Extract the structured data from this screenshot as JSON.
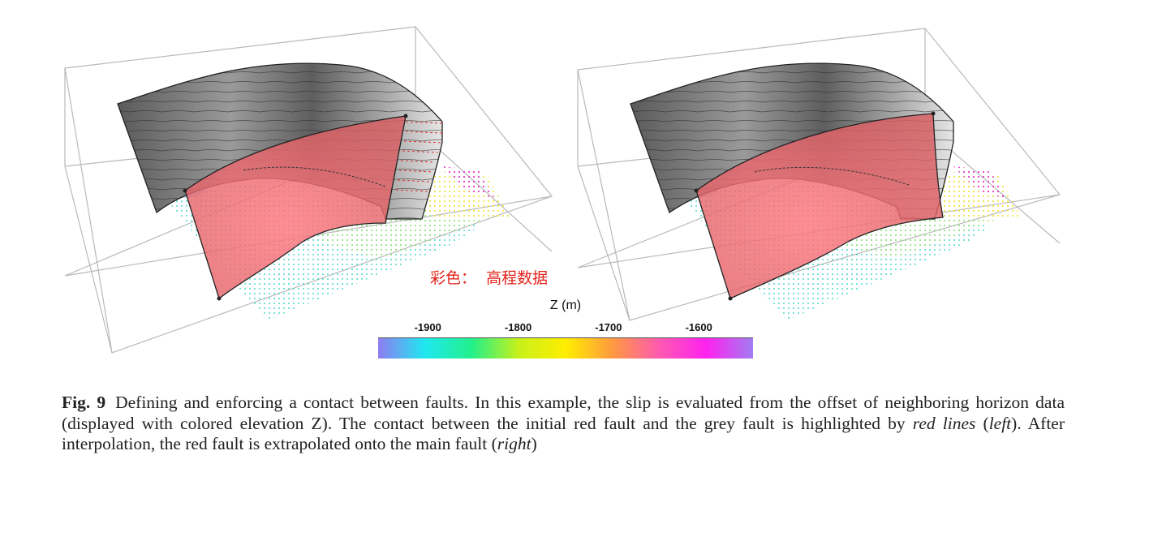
{
  "figure": {
    "panels": [
      {
        "id": "left",
        "name": "initial",
        "description_visible": false
      },
      {
        "id": "right",
        "name": "interpolated",
        "description_visible": false
      }
    ],
    "colors": {
      "grey_fault": "#7c7c7c",
      "red_fault": "#e26a6a",
      "box": "#b9b9b9",
      "contact_line": "#e03030"
    }
  },
  "annotation": {
    "chinese_label": "彩色：  高程数据"
  },
  "colorbar": {
    "title": "Z (m)",
    "ticks": [
      {
        "label": "-1900",
        "value": -1900
      },
      {
        "label": "-1800",
        "value": -1800
      },
      {
        "label": "-1700",
        "value": -1700
      },
      {
        "label": "-1600",
        "value": -1600
      }
    ],
    "range": [
      -1955,
      -1540
    ],
    "colors": [
      "#8f7cf2",
      "#1fe8f0",
      "#22f08a",
      "#c8f01a",
      "#ffee00",
      "#ff9a40",
      "#ff5ab0",
      "#ff22f0",
      "#a27cf0"
    ]
  },
  "caption": {
    "label": "Fig. 9",
    "part1": "Defining and enforcing a contact between faults. In this example, the slip is evaluated from the offset of neighboring horizon data (displayed with colored elevation Z). The contact between the initial red fault and the grey fault is highlighted by ",
    "italic1": "red lines",
    "part2": " (",
    "italic2": "left",
    "part3": "). After interpolation, the red fault is extrapolated onto the main fault (",
    "italic3": "right",
    "part4": ")"
  }
}
